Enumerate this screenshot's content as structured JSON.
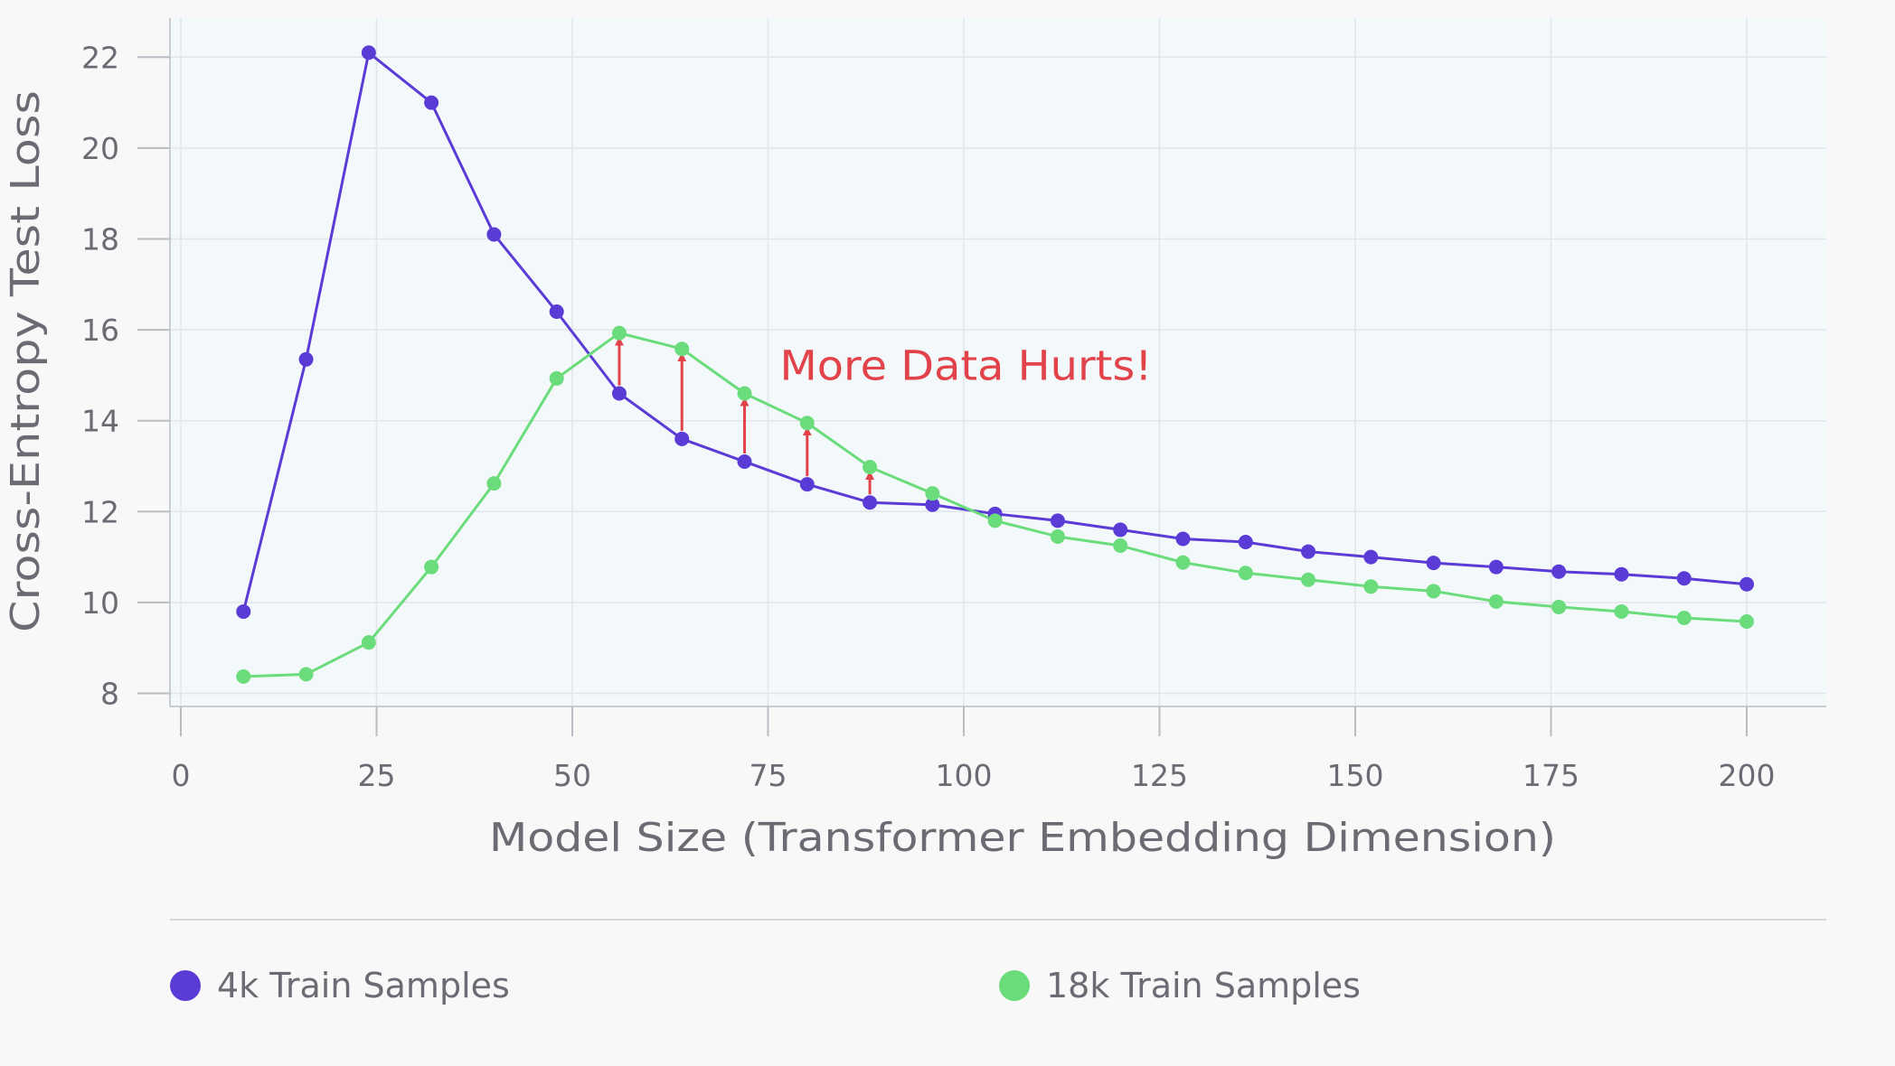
{
  "chart_data": {
    "type": "line",
    "title": "",
    "xlabel": "Model Size (Transformer Embedding Dimension)",
    "ylabel": "Cross-Entropy Test Loss",
    "xlim": [
      -3,
      210
    ],
    "ylim": [
      7.7,
      22.9
    ],
    "xticks": [
      0,
      25,
      50,
      75,
      100,
      125,
      150,
      175,
      200
    ],
    "yticks": [
      8,
      10,
      12,
      14,
      16,
      18,
      20,
      22
    ],
    "grid": true,
    "legend_position": "bottom",
    "x": [
      8,
      16,
      24,
      32,
      40,
      48,
      56,
      64,
      72,
      80,
      88,
      96,
      104,
      112,
      120,
      128,
      136,
      144,
      152,
      160,
      168,
      176,
      184,
      192,
      200
    ],
    "series": [
      {
        "name": "4k Train Samples",
        "color": "#5a3bd6",
        "values": [
          9.8,
          15.35,
          22.1,
          21.0,
          18.1,
          16.4,
          14.6,
          13.6,
          13.1,
          12.6,
          12.2,
          12.15,
          11.95,
          11.8,
          11.6,
          11.4,
          11.33,
          11.12,
          11.0,
          10.87,
          10.78,
          10.68,
          10.62,
          10.53,
          10.4
        ]
      },
      {
        "name": "18k Train Samples",
        "color": "#6bdc7c",
        "values": [
          8.37,
          8.42,
          9.12,
          10.78,
          12.62,
          14.93,
          15.93,
          15.58,
          14.6,
          13.95,
          12.98,
          12.4,
          11.8,
          11.45,
          11.25,
          10.88,
          10.65,
          10.5,
          10.35,
          10.25,
          10.02,
          9.9,
          9.8,
          9.66,
          9.58
        ]
      }
    ],
    "annotations": [
      {
        "text": "More Data Hurts!",
        "x": 76.5,
        "y": 14.9,
        "color": "#e2434a"
      }
    ],
    "arrows": {
      "color": "#e2434a",
      "x": [
        56,
        64,
        72,
        80,
        88
      ]
    }
  }
}
